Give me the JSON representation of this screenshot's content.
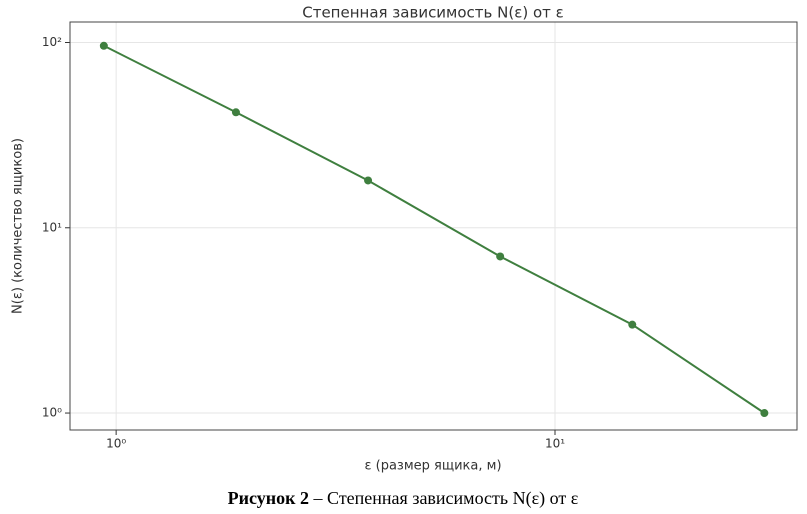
{
  "chart_data": {
    "type": "line",
    "title": "Степенная зависимость N(ε) от ε",
    "xlabel": "ε (размер ящика, м)",
    "ylabel": "N(ε) (количество ящиков)",
    "x": [
      0.9375,
      1.875,
      3.75,
      7.5,
      15,
      30
    ],
    "series": [
      {
        "name": "N(ε)",
        "color": "#3f7f3f",
        "values": [
          96,
          42,
          18,
          7,
          3,
          1
        ]
      }
    ],
    "xscale": "log",
    "yscale": "log",
    "xlim": [
      0.785,
      35.6
    ],
    "ylim": [
      0.81,
      129
    ],
    "xticks": [
      {
        "value": 1,
        "label": "10⁰"
      },
      {
        "value": 10,
        "label": "10¹"
      }
    ],
    "yticks": [
      {
        "value": 1,
        "label": "10⁰"
      },
      {
        "value": 10,
        "label": "10¹"
      },
      {
        "value": 100,
        "label": "10²"
      }
    ],
    "grid": true,
    "legend": false
  },
  "caption": {
    "label": "Рисунок 2",
    "text": "– Степенная зависимость N(ε) от ε"
  }
}
